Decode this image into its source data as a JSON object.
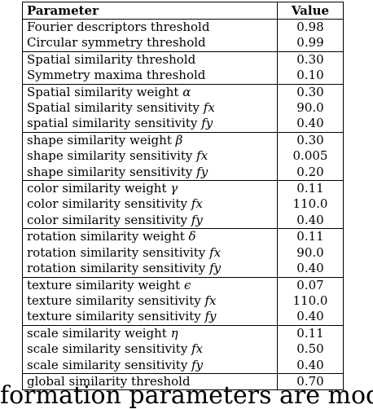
{
  "table": {
    "headers": {
      "parameter": "Parameter",
      "value": "Value"
    },
    "groups": [
      [
        {
          "param": "Fourier descriptors threshold",
          "value": "0.98"
        },
        {
          "param": "Circular symmetry threshold",
          "value": "0.99"
        }
      ],
      [
        {
          "param": "Spatial similarity threshold",
          "value": "0.30"
        },
        {
          "param": "Symmetry maxima threshold",
          "value": "0.10"
        }
      ],
      [
        {
          "param": "Spatial similarity weight",
          "symbol": "α",
          "value": "0.30"
        },
        {
          "param": "Spatial similarity sensitivity",
          "symbol": "fx",
          "value": "90.0"
        },
        {
          "param": "spatial similarity sensitivity",
          "symbol": "fy",
          "value": "0.40"
        }
      ],
      [
        {
          "param": "shape similarity weight",
          "symbol": "β",
          "value": "0.30"
        },
        {
          "param": "shape similarity sensitivity",
          "symbol": "fx",
          "value": "0.005"
        },
        {
          "param": "shape similarity sensitivity",
          "symbol": "fy",
          "value": "0.20"
        }
      ],
      [
        {
          "param": "color similarity weight",
          "symbol": "γ",
          "value": "0.11"
        },
        {
          "param": "color similarity sensitivity",
          "symbol": "fx",
          "value": "110.0"
        },
        {
          "param": "color similarity sensitivity",
          "symbol": "fy",
          "value": "0.40"
        }
      ],
      [
        {
          "param": "rotation similarity weight",
          "symbol": "δ",
          "value": "0.11"
        },
        {
          "param": "rotation similarity sensitivity",
          "symbol": "fx",
          "value": "90.0"
        },
        {
          "param": "rotation similarity sensitivity",
          "symbol": "fy",
          "value": "0.40"
        }
      ],
      [
        {
          "param": "texture similarity weight",
          "symbol": "ϵ",
          "value": "0.07"
        },
        {
          "param": "texture similarity sensitivity",
          "symbol": "fx",
          "value": "110.0"
        },
        {
          "param": "texture similarity sensitivity",
          "symbol": "fy",
          "value": "0.40"
        }
      ],
      [
        {
          "param": "scale similarity weight",
          "symbol": "η",
          "value": "0.11"
        },
        {
          "param": "scale similarity sensitivity",
          "symbol": "fx",
          "value": "0.50"
        },
        {
          "param": "scale similarity sensitivity",
          "symbol": "fy",
          "value": "0.40"
        }
      ],
      [
        {
          "param": "global similarity threshold",
          "value": "0.70"
        }
      ]
    ]
  },
  "caption_fragment": "formation parameters are model of"
}
